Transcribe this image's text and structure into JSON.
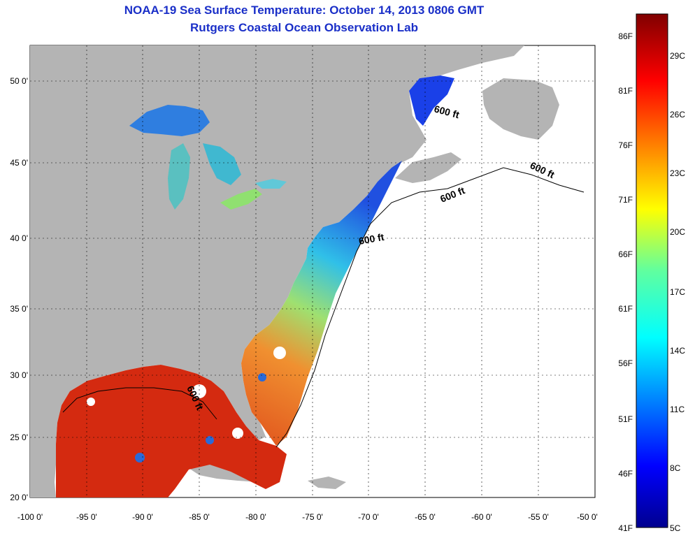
{
  "title": "NOAA-19 Sea Surface Temperature:  October 14, 2013 0806 GMT",
  "subtitle": "Rutgers Coastal Ocean Observation Lab",
  "lon_ticks": [
    "-100 0'",
    "-95 0'",
    "-90 0'",
    "-85 0'",
    "-80 0'",
    "-75 0'",
    "-70 0'",
    "-65 0'",
    "-60 0'",
    "-55 0'",
    "-50 0'"
  ],
  "lat_ticks": [
    "50 0'",
    "45 0'",
    "40 0'",
    "35 0'",
    "30 0'",
    "25 0'",
    "20 0'"
  ],
  "contour_label": "600 ft",
  "colorbar": {
    "fahrenheit": [
      "86F",
      "81F",
      "76F",
      "71F",
      "66F",
      "61F",
      "56F",
      "51F",
      "46F",
      "41F"
    ],
    "celsius": [
      "29C",
      "26C",
      "23C",
      "20C",
      "17C",
      "14C",
      "11C",
      "8C",
      "5C"
    ]
  },
  "colors": {
    "land": "#b4b4b4",
    "title": "#1a2fc8",
    "warm": "#d42a10",
    "cool": "#2a6ad8"
  }
}
